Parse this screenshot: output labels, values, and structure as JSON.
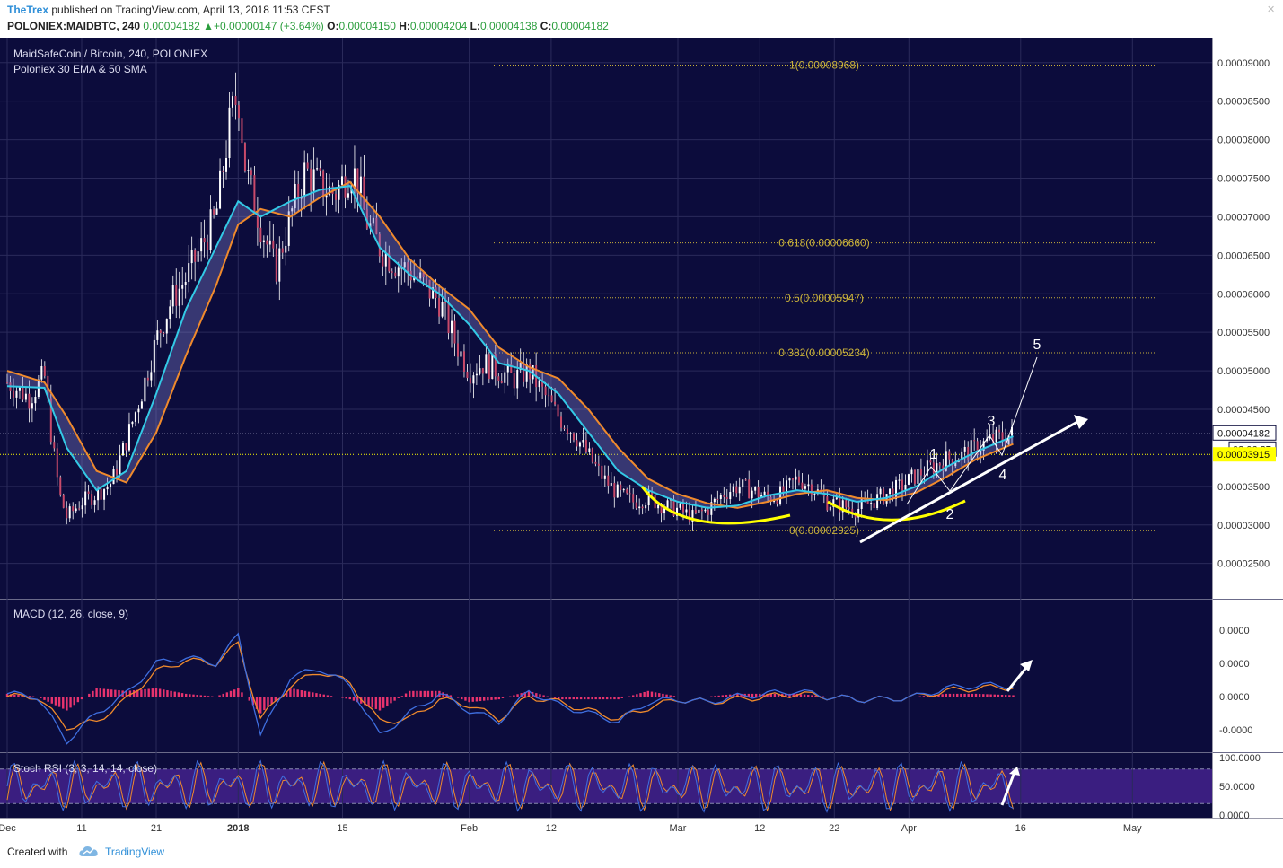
{
  "header": {
    "author": "TheTrex",
    "published": " published on TradingView.com, April 13, 2018 11:53 CEST",
    "symbol": "POLONIEX:MAIDBTC, 240",
    "last": "0.00004182",
    "change": "+0.00000147 (+3.64%)",
    "o_label": "O:",
    "o": "0.00004150",
    "h_label": "H:",
    "h": "0.00004204",
    "l_label": "L:",
    "l": "0.00004138",
    "c_label": "C:",
    "c": "0.00004182"
  },
  "footer": {
    "created_with": "Created with",
    "brand": "TradingView"
  },
  "colors": {
    "background": "#0c0c3c",
    "grid": "#2a2a5a",
    "ema": "#33c9e6",
    "sma": "#f08a2c",
    "fib": "#c9b13a",
    "annotation": "#ffffff",
    "cup": "#ffff00",
    "macd_hist": "#e8336e",
    "stoch_band": "#3a1e80",
    "candle": "#ffffff"
  },
  "chart_data": [
    {
      "type": "line",
      "title": "MaidSafeCoin / Bitcoin, 240, POLONIEX",
      "subtitle": "Poloniex 30 EMA & 50 SMA",
      "ylim": [
        2.1e-05,
        9.3e-05
      ],
      "y_ticks": [
        "0.00009000",
        "0.00008500",
        "0.00008000",
        "0.00007500",
        "0.00007000",
        "0.00006500",
        "0.00006000",
        "0.00005500",
        "0.00005000",
        "0.00004500",
        "0.00003500",
        "0.00003000",
        "0.00002500"
      ],
      "y_tick_values": [
        9e-05,
        8.5e-05,
        8e-05,
        7.5e-05,
        7e-05,
        6.5e-05,
        6e-05,
        5.5e-05,
        5e-05,
        4.5e-05,
        3.5e-05,
        3e-05,
        2.5e-05
      ],
      "x_ticks": [
        "Dec",
        "11",
        "21",
        "2018",
        "15",
        "Feb",
        "12",
        "Mar",
        "12",
        "22",
        "Apr",
        "16",
        "May"
      ],
      "x_tick_days": [
        0,
        10,
        20,
        31,
        45,
        62,
        73,
        90,
        101,
        111,
        121,
        136,
        151
      ],
      "last_price_label": "0.00004182",
      "countdown_label": "02:06:37",
      "marked_price_label": "0.00003915",
      "last_price": 4.182e-05,
      "marked_price": 3.915e-05,
      "fib_levels": [
        {
          "label": "1(0.00008968)",
          "value": 8.968e-05
        },
        {
          "label": "0.618(0.00006660)",
          "value": 6.66e-05
        },
        {
          "label": "0.5(0.00005947)",
          "value": 5.947e-05
        },
        {
          "label": "0.382(0.00005234)",
          "value": 5.234e-05
        },
        {
          "label": "0(0.00002925)",
          "value": 2.925e-05
        }
      ],
      "wave_labels": [
        "1",
        "2",
        "3",
        "4",
        "5"
      ],
      "series": [
        {
          "name": "Close",
          "x_days": [
            0,
            3,
            5,
            6,
            7,
            8,
            10,
            12,
            14,
            16,
            18,
            20,
            22,
            24,
            26,
            28,
            30,
            31,
            32,
            34,
            36,
            38,
            40,
            42,
            44,
            46,
            47,
            48,
            50,
            52,
            54,
            56,
            58,
            60,
            62,
            64,
            66,
            68,
            70,
            72,
            74,
            76,
            78,
            80,
            82,
            84,
            86,
            88,
            90,
            92,
            94,
            96,
            98,
            100,
            102,
            104,
            106,
            108,
            110,
            112,
            114,
            116,
            118,
            120,
            122,
            124,
            126,
            128,
            130,
            132,
            134,
            135
          ],
          "values": [
            4.85e-05,
            4.65e-05,
            4.95e-05,
            4.1e-05,
            3.4e-05,
            3.1e-05,
            3.3e-05,
            3.4e-05,
            3.55e-05,
            4.1e-05,
            4.7e-05,
            5.4e-05,
            5.9e-05,
            6.2e-05,
            6.6e-05,
            7e-05,
            8.3e-05,
            8.6e-05,
            7.6e-05,
            6.9e-05,
            6.3e-05,
            7e-05,
            7.6e-05,
            7.4e-05,
            7.3e-05,
            7.6e-05,
            7.5e-05,
            7e-05,
            6.6e-05,
            6.4e-05,
            6.3e-05,
            6.1e-05,
            5.9e-05,
            5.4e-05,
            5e-05,
            5.1e-05,
            5e-05,
            4.9e-05,
            5e-05,
            4.7e-05,
            4.4e-05,
            4.2e-05,
            3.9e-05,
            3.6e-05,
            3.4e-05,
            3.3e-05,
            3.35e-05,
            3.25e-05,
            3.2e-05,
            3.1e-05,
            3.2e-05,
            3.4e-05,
            3.5e-05,
            3.45e-05,
            3.35e-05,
            3.4e-05,
            3.6e-05,
            3.5e-05,
            3.3e-05,
            3.25e-05,
            3.2e-05,
            3.3e-05,
            3.4e-05,
            3.5e-05,
            3.65e-05,
            3.75e-05,
            3.85e-05,
            3.9e-05,
            4e-05,
            4.1e-05,
            4.15e-05,
            4.18e-05
          ]
        },
        {
          "name": "EMA 30",
          "x_days": [
            0,
            5,
            8,
            12,
            16,
            20,
            24,
            28,
            31,
            34,
            38,
            42,
            46,
            50,
            54,
            58,
            62,
            66,
            70,
            74,
            78,
            82,
            86,
            90,
            94,
            98,
            102,
            106,
            110,
            114,
            118,
            122,
            126,
            130,
            135
          ],
          "values": [
            4.8e-05,
            4.78e-05,
            4e-05,
            3.45e-05,
            3.7e-05,
            4.7e-05,
            5.8e-05,
            6.6e-05,
            7.2e-05,
            7e-05,
            7.2e-05,
            7.35e-05,
            7.4e-05,
            6.6e-05,
            6.25e-05,
            6e-05,
            5.6e-05,
            5.1e-05,
            5e-05,
            4.7e-05,
            4.2e-05,
            3.7e-05,
            3.45e-05,
            3.3e-05,
            3.22e-05,
            3.25e-05,
            3.38e-05,
            3.45e-05,
            3.4e-05,
            3.3e-05,
            3.35e-05,
            3.5e-05,
            3.75e-05,
            3.95e-05,
            4.15e-05
          ]
        },
        {
          "name": "SMA 50",
          "x_days": [
            0,
            5,
            8,
            12,
            16,
            20,
            24,
            28,
            31,
            34,
            38,
            42,
            46,
            50,
            54,
            58,
            62,
            66,
            70,
            74,
            78,
            82,
            86,
            90,
            94,
            98,
            102,
            106,
            110,
            114,
            118,
            122,
            126,
            130,
            135
          ],
          "values": [
            5e-05,
            4.85e-05,
            4.4e-05,
            3.7e-05,
            3.55e-05,
            4.2e-05,
            5.2e-05,
            6.1e-05,
            6.9e-05,
            7.1e-05,
            7e-05,
            7.25e-05,
            7.45e-05,
            7e-05,
            6.45e-05,
            6.1e-05,
            5.8e-05,
            5.3e-05,
            5.05e-05,
            4.9e-05,
            4.5e-05,
            4e-05,
            3.6e-05,
            3.4e-05,
            3.28e-05,
            3.22e-05,
            3.3e-05,
            3.4e-05,
            3.45e-05,
            3.35e-05,
            3.32e-05,
            3.42e-05,
            3.62e-05,
            3.85e-05,
            4.05e-05
          ]
        }
      ]
    },
    {
      "type": "line",
      "title": "MACD (12, 26, close, 9)",
      "y_ticks": [
        "0.0000",
        "0.0000",
        "0.0000",
        "-0.0000"
      ],
      "series": [
        {
          "name": "MACD",
          "x_days": [
            0,
            4,
            8,
            12,
            16,
            20,
            24,
            28,
            31,
            34,
            38,
            42,
            46,
            50,
            54,
            58,
            62,
            66,
            70,
            74,
            78,
            82,
            86,
            90,
            94,
            98,
            102,
            106,
            110,
            114,
            118,
            122,
            126,
            130,
            135
          ],
          "values": [
            0.1,
            0.0,
            -1.6,
            -0.6,
            0.1,
            1.2,
            1.4,
            1.2,
            2.2,
            -1.4,
            0.7,
            1.0,
            0.4,
            -1.4,
            -0.6,
            0.1,
            -0.5,
            -0.9,
            0.2,
            -0.3,
            -0.6,
            -0.9,
            -0.2,
            -0.1,
            -0.2,
            0.0,
            0.1,
            0.2,
            0.0,
            -0.1,
            -0.1,
            0.0,
            0.3,
            0.4,
            0.4
          ]
        },
        {
          "name": "Signal",
          "x_days": [
            0,
            4,
            8,
            12,
            16,
            20,
            24,
            28,
            31,
            34,
            38,
            42,
            46,
            50,
            54,
            58,
            62,
            66,
            70,
            74,
            78,
            82,
            86,
            90,
            94,
            98,
            102,
            106,
            110,
            114,
            118,
            122,
            126,
            130,
            135
          ],
          "values": [
            0.0,
            0.0,
            -1.1,
            -0.9,
            -0.1,
            0.9,
            1.3,
            1.2,
            1.9,
            -0.8,
            0.4,
            0.9,
            0.5,
            -0.9,
            -0.8,
            -0.1,
            -0.3,
            -0.8,
            0.0,
            -0.2,
            -0.5,
            -0.8,
            -0.4,
            -0.1,
            -0.2,
            -0.1,
            0.0,
            0.1,
            0.0,
            -0.1,
            -0.1,
            0.0,
            0.2,
            0.3,
            0.35
          ]
        }
      ]
    },
    {
      "type": "line",
      "title": "Stoch RSI (3, 3, 14, 14, close)",
      "ylim": [
        0,
        100
      ],
      "y_ticks": [
        "100.0000",
        "50.0000",
        "0.0000"
      ],
      "bands": [
        80,
        20
      ]
    }
  ]
}
